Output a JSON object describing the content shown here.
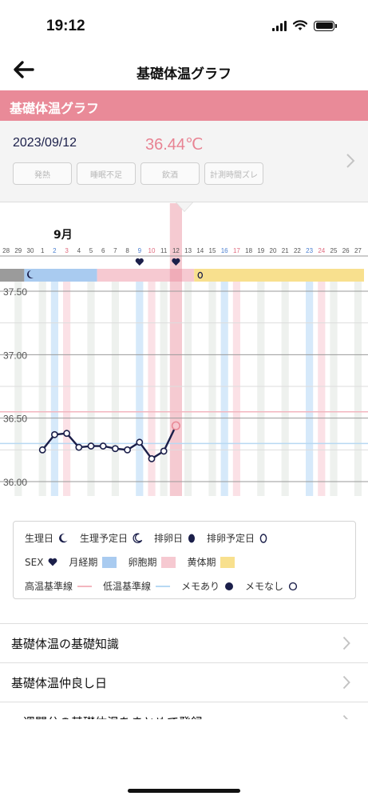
{
  "status_bar": {
    "time": "19:12"
  },
  "nav": {
    "title": "基礎体温グラフ"
  },
  "section": {
    "title": "基礎体温グラフ"
  },
  "info": {
    "date": "2023/09/12",
    "temperature": "36.44℃",
    "tags": [
      "発熱",
      "睡眠不足",
      "飲酒",
      "計測時間ズレ"
    ]
  },
  "chart_data": {
    "type": "line",
    "month_label": "9月",
    "day_labels": [
      "28",
      "29",
      "30",
      "1",
      "2",
      "3",
      "4",
      "5",
      "6",
      "7",
      "8",
      "9",
      "10",
      "11",
      "12",
      "13",
      "14",
      "15",
      "16",
      "17",
      "18",
      "19",
      "20",
      "21",
      "22",
      "23",
      "24",
      "25",
      "26",
      "27"
    ],
    "saturday_days": [
      "2",
      "9",
      "16",
      "23"
    ],
    "sunday_days": [
      "3",
      "10",
      "17",
      "24"
    ],
    "y_tick_labels": [
      "37.50",
      "37.00",
      "36.50",
      "36.00"
    ],
    "ylim": [
      35.95,
      37.55
    ],
    "selected_day": "12",
    "temperatures": [
      {
        "day": "1",
        "value": 36.25
      },
      {
        "day": "2",
        "value": 36.37
      },
      {
        "day": "3",
        "value": 36.38
      },
      {
        "day": "4",
        "value": 36.27
      },
      {
        "day": "5",
        "value": 36.28
      },
      {
        "day": "6",
        "value": 36.28
      },
      {
        "day": "7",
        "value": 36.26
      },
      {
        "day": "8",
        "value": 36.25
      },
      {
        "day": "9",
        "value": 36.31
      },
      {
        "day": "10",
        "value": 36.18
      },
      {
        "day": "11",
        "value": 36.24
      },
      {
        "day": "12",
        "value": 36.44
      }
    ],
    "high_baseline": 36.55,
    "low_baseline": 36.3,
    "sex_days": [
      "9",
      "12"
    ],
    "menstruation_days": [
      "28",
      "29"
    ],
    "phase_bar": [
      {
        "phase": "menstruation",
        "from": "28",
        "to": "29",
        "color": "#9b9b9b"
      },
      {
        "phase": "menstruation",
        "from": "30",
        "to": "5",
        "color": "#a9cbf0"
      },
      {
        "phase": "follicular",
        "from": "6",
        "to": "13",
        "color": "#f6c9d1"
      },
      {
        "phase": "luteal",
        "from": "14",
        "to": "27",
        "color": "#f8e08e"
      }
    ],
    "period_icon_day": "30",
    "expected_ovulation_day": "14",
    "colors": {
      "line": "#1b1f4a",
      "selected": "#e98a98",
      "period_band": "#d6e9fa",
      "follicular_band": "#fbe1e6",
      "gray_band": "#eef1ee",
      "high_baseline": "#f3b6bf",
      "low_baseline": "#b7d9f3"
    }
  },
  "legend": {
    "period_day": "生理日",
    "expected_period_day": "生理予定日",
    "ovulation_day": "排卵日",
    "expected_ovulation_day": "排卵予定日",
    "sex": "SEX",
    "menstrual_phase": "月経期",
    "follicular_phase": "卵胞期",
    "luteal_phase": "黄体期",
    "high_baseline": "高温基準線",
    "low_baseline": "低温基準線",
    "memo_yes": "メモあり",
    "memo_no": "メモなし"
  },
  "menu": [
    {
      "label": "基礎体温の基礎知識"
    },
    {
      "label": "基礎体温仲良し日"
    },
    {
      "label": "一週間分の基礎体温をまとめて登録"
    }
  ]
}
